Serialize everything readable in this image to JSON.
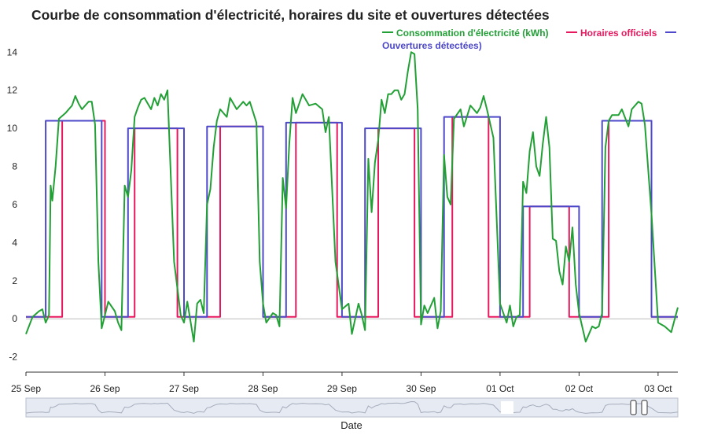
{
  "chart_data": {
    "type": "line",
    "title": "Courbe de consommation d'électricité, horaires du site et ouvertures détectées",
    "xlabel": "Date",
    "ylabel": "",
    "ylim": [
      -2.8,
      15.5
    ],
    "yticks": [
      -2,
      0,
      2,
      4,
      6,
      8,
      10,
      12,
      14
    ],
    "xrange": [
      "2025-09-25T00:00",
      "2025-10-03T06:00"
    ],
    "x_tick_labels": [
      "25 Sep",
      "26 Sep",
      "27 Sep",
      "28 Sep",
      "29 Sep",
      "30 Sep",
      "01 Oct",
      "02 Oct",
      "03 Oct"
    ],
    "x_tick_dates": [
      "2025-09-25",
      "2025-09-26",
      "2025-09-27",
      "2025-09-28",
      "2025-09-29",
      "2025-09-30",
      "2025-10-01",
      "2025-10-02",
      "2025-10-03"
    ],
    "grid": false,
    "legend_placement": "top-right",
    "series": [
      {
        "name": "Consommation d'électricité (kWh)",
        "color": "#22a036",
        "x": [
          "2025-09-25T00:00",
          "2025-09-25T02:00",
          "2025-09-25T04:00",
          "2025-09-25T05:00",
          "2025-09-25T06:00",
          "2025-09-25T07:00",
          "2025-09-25T07:30",
          "2025-09-25T08:00",
          "2025-09-25T09:00",
          "2025-09-25T10:00",
          "2025-09-25T12:00",
          "2025-09-25T14:00",
          "2025-09-25T15:00",
          "2025-09-25T16:00",
          "2025-09-25T17:00",
          "2025-09-25T19:00",
          "2025-09-25T20:00",
          "2025-09-25T21:00",
          "2025-09-25T22:00",
          "2025-09-25T23:00",
          "2025-09-26T00:00",
          "2025-09-26T01:00",
          "2025-09-26T03:00",
          "2025-09-26T04:00",
          "2025-09-26T05:00",
          "2025-09-26T06:00",
          "2025-09-26T07:00",
          "2025-09-26T08:00",
          "2025-09-26T09:00",
          "2025-09-26T10:00",
          "2025-09-26T11:00",
          "2025-09-26T12:00",
          "2025-09-26T14:00",
          "2025-09-26T15:00",
          "2025-09-26T16:00",
          "2025-09-26T17:00",
          "2025-09-26T18:00",
          "2025-09-26T19:00",
          "2025-09-26T21:00",
          "2025-09-26T23:00",
          "2025-09-27T00:00",
          "2025-09-27T01:00",
          "2025-09-27T03:00",
          "2025-09-27T04:00",
          "2025-09-27T05:00",
          "2025-09-27T06:00",
          "2025-09-27T07:00",
          "2025-09-27T08:00",
          "2025-09-27T09:00",
          "2025-09-27T10:00",
          "2025-09-27T11:00",
          "2025-09-27T13:00",
          "2025-09-27T14:00",
          "2025-09-27T16:00",
          "2025-09-27T18:00",
          "2025-09-27T19:00",
          "2025-09-27T20:00",
          "2025-09-27T22:00",
          "2025-09-27T23:00",
          "2025-09-28T00:00",
          "2025-09-28T01:00",
          "2025-09-28T03:00",
          "2025-09-28T04:00",
          "2025-09-28T05:00",
          "2025-09-28T06:00",
          "2025-09-28T07:00",
          "2025-09-28T08:00",
          "2025-09-28T09:00",
          "2025-09-28T10:00",
          "2025-09-28T12:00",
          "2025-09-28T14:00",
          "2025-09-28T16:00",
          "2025-09-28T18:00",
          "2025-09-28T19:00",
          "2025-09-28T20:00",
          "2025-09-28T22:00",
          "2025-09-29T00:00",
          "2025-09-29T02:00",
          "2025-09-29T03:00",
          "2025-09-29T05:00",
          "2025-09-29T06:00",
          "2025-09-29T07:00",
          "2025-09-29T08:00",
          "2025-09-29T09:00",
          "2025-09-29T10:00",
          "2025-09-29T11:00",
          "2025-09-29T12:00",
          "2025-09-29T13:00",
          "2025-09-29T14:00",
          "2025-09-29T15:00",
          "2025-09-29T16:00",
          "2025-09-29T17:00",
          "2025-09-29T18:00",
          "2025-09-29T19:00",
          "2025-09-29T20:00",
          "2025-09-29T21:00",
          "2025-09-29T22:00",
          "2025-09-29T23:00",
          "2025-09-30T00:00",
          "2025-09-30T01:00",
          "2025-09-30T02:00",
          "2025-09-30T04:00",
          "2025-09-30T05:00",
          "2025-09-30T06:00",
          "2025-09-30T07:00",
          "2025-09-30T08:00",
          "2025-09-30T09:00",
          "2025-09-30T10:00",
          "2025-09-30T12:00",
          "2025-09-30T13:00",
          "2025-09-30T15:00",
          "2025-09-30T16:00",
          "2025-09-30T17:00",
          "2025-09-30T18:00",
          "2025-09-30T19:00",
          "2025-09-30T20:00",
          "2025-09-30T22:00",
          "2025-10-01T00:00",
          "2025-10-01T02:00",
          "2025-10-01T03:00",
          "2025-10-01T04:00",
          "2025-10-01T05:00",
          "2025-10-01T06:00",
          "2025-10-01T07:00",
          "2025-10-01T08:00",
          "2025-10-01T09:00",
          "2025-10-01T10:00",
          "2025-10-01T11:00",
          "2025-10-01T12:00",
          "2025-10-01T13:00",
          "2025-10-01T14:00",
          "2025-10-01T15:00",
          "2025-10-01T16:00",
          "2025-10-01T17:00",
          "2025-10-01T18:00",
          "2025-10-01T19:00",
          "2025-10-01T20:00",
          "2025-10-01T21:00",
          "2025-10-01T22:00",
          "2025-10-01T23:00",
          "2025-10-02T00:00",
          "2025-10-02T02:00",
          "2025-10-02T04:00",
          "2025-10-02T05:00",
          "2025-10-02T06:00",
          "2025-10-02T07:00",
          "2025-10-02T08:00",
          "2025-10-02T09:00",
          "2025-10-02T10:00",
          "2025-10-02T12:00",
          "2025-10-02T13:00",
          "2025-10-02T15:00",
          "2025-10-02T16:00",
          "2025-10-02T18:00",
          "2025-10-02T19:00",
          "2025-10-02T20:00",
          "2025-10-02T22:00",
          "2025-10-03T00:00",
          "2025-10-03T02:00",
          "2025-10-03T04:00",
          "2025-10-03T06:00"
        ],
        "y": [
          -0.8,
          0.1,
          0.4,
          0.5,
          -0.2,
          0.2,
          7,
          6.2,
          8,
          10.5,
          10.8,
          11.2,
          11.7,
          11.3,
          11,
          11.4,
          11.4,
          10.2,
          3,
          -0.5,
          0.2,
          0.9,
          0.4,
          -0.2,
          -0.6,
          7,
          6.4,
          7.8,
          10.6,
          11.1,
          11.5,
          11.6,
          11,
          11.6,
          11.2,
          11.8,
          11.5,
          12,
          3,
          0.2,
          -0.2,
          0.9,
          -1.2,
          0.8,
          1,
          0.3,
          6,
          6.8,
          9,
          10.4,
          11,
          10.6,
          11.6,
          11,
          11.4,
          11.2,
          11.4,
          10.3,
          3,
          0.8,
          -0.2,
          0.3,
          0.2,
          -0.4,
          7.4,
          5.8,
          9.2,
          11.6,
          10.8,
          11.8,
          11.2,
          11.3,
          11,
          9.8,
          10.6,
          3,
          0.5,
          0.8,
          -0.8,
          0.8,
          0.2,
          -0.6,
          8.4,
          5.6,
          8.2,
          9.4,
          11.5,
          10.8,
          11.8,
          11.8,
          12,
          12,
          11.5,
          11.8,
          13,
          14,
          13.9,
          11,
          -0.3,
          0.7,
          0.3,
          1.1,
          -0.5,
          0.4,
          8.6,
          6.4,
          6,
          10.5,
          11,
          10.1,
          11.2,
          11,
          10.8,
          11.1,
          11.7,
          11,
          9.5,
          0.8,
          -0.2,
          0.7,
          -0.4,
          0.1,
          0.2,
          7.2,
          6.6,
          8.8,
          9.8,
          8,
          7.5,
          9.2,
          10.6,
          9,
          4.2,
          4.1,
          2.5,
          1.8,
          3.8,
          3,
          4.8,
          1.8,
          0.3,
          -1.2,
          -0.4,
          -0.5,
          -0.4,
          0.3,
          9,
          10.4,
          10.7,
          10.7,
          11,
          10.1,
          11,
          11.4,
          11.3,
          10.2,
          5.5,
          -0.2,
          -0.4,
          -0.7,
          0.6
        ]
      },
      {
        "name": "Horaires officiels",
        "color": "#e8185e",
        "x": [
          "2025-09-25T00:00",
          "2025-09-25T11:00",
          "2025-09-25T11:00",
          "2025-09-26T00:00",
          "2025-09-26T00:00",
          "2025-09-26T09:00",
          "2025-09-26T09:00",
          "2025-09-26T22:00",
          "2025-09-26T22:00",
          "2025-09-27T11:00",
          "2025-09-27T11:00",
          "2025-09-28T00:00",
          "2025-09-28T00:00",
          "2025-09-28T10:00",
          "2025-09-28T10:00",
          "2025-09-28T22:30",
          "2025-09-28T22:30",
          "2025-09-29T11:00",
          "2025-09-29T11:00",
          "2025-09-29T22:00",
          "2025-09-29T22:00",
          "2025-09-30T09:30",
          "2025-09-30T09:30",
          "2025-09-30T20:30",
          "2025-09-30T20:30",
          "2025-10-01T09:00",
          "2025-10-01T09:00",
          "2025-10-01T21:00",
          "2025-10-01T21:00",
          "2025-10-02T09:00",
          "2025-10-02T09:00",
          "2025-10-02T22:00",
          "2025-10-02T22:00",
          "2025-10-03T06:00"
        ],
        "y": [
          0.1,
          0.1,
          10.4,
          10.4,
          0.1,
          0.1,
          10,
          10,
          0.1,
          0.1,
          10.1,
          10.1,
          0.1,
          0.1,
          10.3,
          10.3,
          0.1,
          0.1,
          10,
          10,
          0.1,
          0.1,
          10.6,
          10.6,
          0.1,
          0.1,
          5.9,
          5.9,
          0.1,
          0.1,
          10.4,
          10.4,
          0.1,
          0.1
        ]
      },
      {
        "name": "Ouvertures détectées)",
        "color": "#4d49c9",
        "x": [
          "2025-09-25T00:00",
          "2025-09-25T06:00",
          "2025-09-25T06:00",
          "2025-09-25T23:00",
          "2025-09-25T23:00",
          "2025-09-26T07:00",
          "2025-09-26T07:00",
          "2025-09-27T00:00",
          "2025-09-27T00:00",
          "2025-09-27T07:00",
          "2025-09-27T07:00",
          "2025-09-28T00:00",
          "2025-09-28T00:00",
          "2025-09-28T07:00",
          "2025-09-28T07:00",
          "2025-09-29T00:00",
          "2025-09-29T00:00",
          "2025-09-29T07:00",
          "2025-09-29T07:00",
          "2025-09-30T00:00",
          "2025-09-30T00:00",
          "2025-09-30T07:00",
          "2025-09-30T07:00",
          "2025-10-01T00:00",
          "2025-10-01T00:00",
          "2025-10-01T07:00",
          "2025-10-01T07:00",
          "2025-10-02T00:00",
          "2025-10-02T00:00",
          "2025-10-02T07:00",
          "2025-10-02T07:00",
          "2025-10-02T22:00",
          "2025-10-02T22:00",
          "2025-10-03T06:00"
        ],
        "y": [
          0.1,
          0.1,
          10.4,
          10.4,
          0.1,
          0.1,
          10,
          10,
          0.1,
          0.1,
          10.1,
          10.1,
          0.1,
          0.1,
          10.3,
          10.3,
          0.1,
          0.1,
          10,
          10,
          0.1,
          0.1,
          10.6,
          10.6,
          0.1,
          0.1,
          5.9,
          5.9,
          0.1,
          0.1,
          10.4,
          10.4,
          0.1,
          0.1
        ]
      }
    ]
  }
}
